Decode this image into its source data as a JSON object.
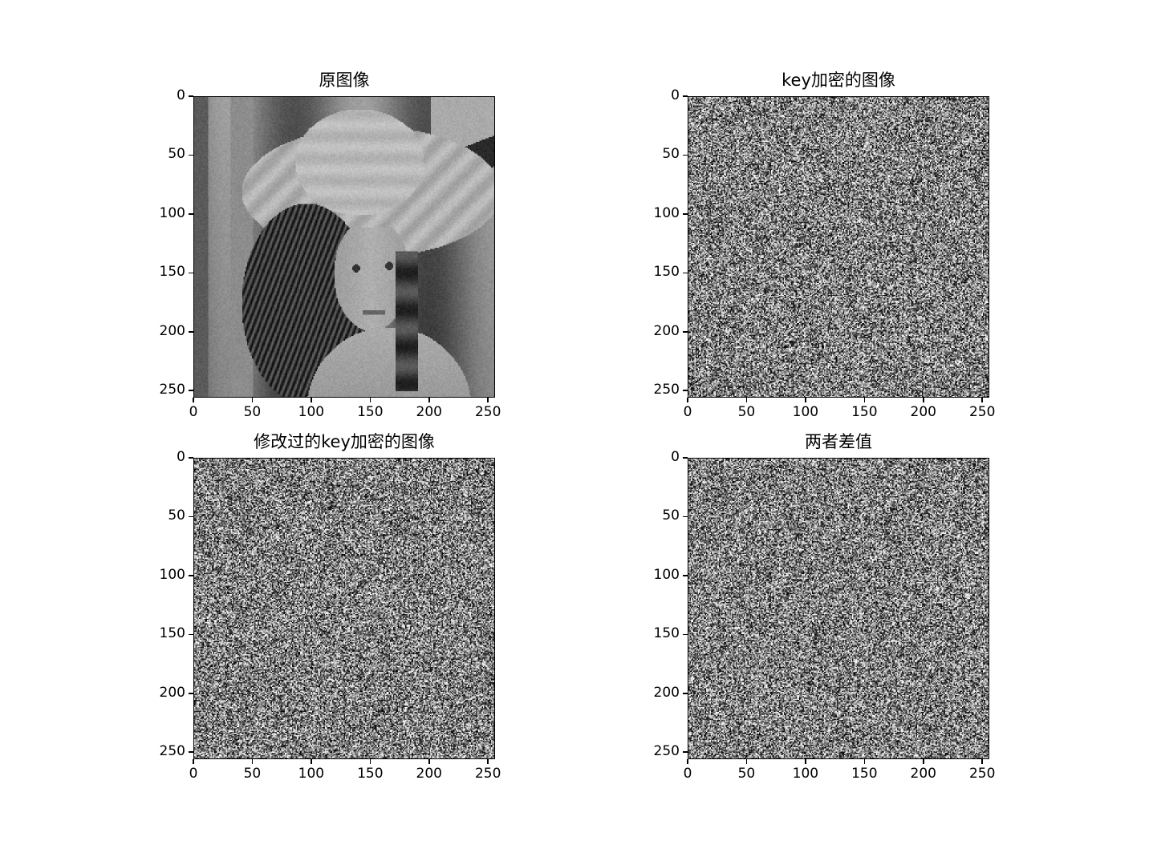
{
  "chart_data": [
    {
      "type": "heatmap",
      "title": "原图像",
      "image": "grayscale-photo-woman-with-hat",
      "colormap": "gray",
      "xlim": [
        0,
        256
      ],
      "ylim": [
        256,
        0
      ],
      "xticks": [
        "0",
        "50",
        "100",
        "150",
        "200",
        "250"
      ],
      "yticks": [
        "0",
        "50",
        "100",
        "150",
        "200",
        "250"
      ]
    },
    {
      "type": "heatmap",
      "title": "key加密的图像",
      "image": "random-noise",
      "colormap": "gray",
      "xlim": [
        0,
        256
      ],
      "ylim": [
        256,
        0
      ],
      "xticks": [
        "0",
        "50",
        "100",
        "150",
        "200",
        "250"
      ],
      "yticks": [
        "0",
        "50",
        "100",
        "150",
        "200",
        "250"
      ]
    },
    {
      "type": "heatmap",
      "title": "修改过的key加密的图像",
      "image": "random-noise",
      "colormap": "gray",
      "xlim": [
        0,
        256
      ],
      "ylim": [
        256,
        0
      ],
      "xticks": [
        "0",
        "50",
        "100",
        "150",
        "200",
        "250"
      ],
      "yticks": [
        "0",
        "50",
        "100",
        "150",
        "200",
        "250"
      ]
    },
    {
      "type": "heatmap",
      "title": "两者差值",
      "image": "random-noise",
      "colormap": "gray",
      "xlim": [
        0,
        256
      ],
      "ylim": [
        256,
        0
      ],
      "xticks": [
        "0",
        "50",
        "100",
        "150",
        "200",
        "250"
      ],
      "yticks": [
        "0",
        "50",
        "100",
        "150",
        "200",
        "250"
      ]
    }
  ]
}
